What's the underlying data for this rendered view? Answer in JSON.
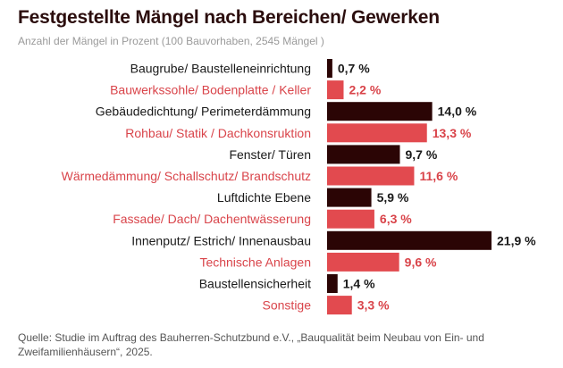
{
  "header": {
    "title": "Festgestellte Mängel nach Bereichen/ Gewerken",
    "subtitle": "Anzahl der Mängel in Prozent (100 Bauvorhaben, 2545 Mängel )"
  },
  "footer": {
    "source": "Quelle: Studie im Auftrag des Bauherren-Schutzbund e.V., „Bauqualität beim Neubau von Ein- und Zweifamilienhäusern“, 2025."
  },
  "colors": {
    "dark": "#2b0505",
    "accent": "#e24a4f",
    "dark_label": "#1a1a1a",
    "accent_label": "#d9444a"
  },
  "chart_data": {
    "type": "bar",
    "orientation": "horizontal",
    "categories": [
      "Baugrube/ Baustelleneinrichtung",
      "Bauwerkssohle/ Bodenplatte / Keller",
      "Gebäudedichtung/ Perimeterdämmung",
      "Rohbau/ Statik / Dachkonsruktion",
      "Fenster/ Türen",
      "Wärmedämmung/ Schallschutz/ Brandschutz",
      "Luftdichte Ebene",
      "Fassade/ Dach/ Dachentwässerung",
      "Innenputz/ Estrich/ Innenausbau",
      "Technische Anlagen",
      "Baustellensicherheit",
      "Sonstige"
    ],
    "values": [
      0.7,
      2.2,
      14.0,
      13.3,
      9.7,
      11.6,
      5.9,
      6.3,
      21.9,
      9.6,
      1.4,
      3.3
    ],
    "value_labels": [
      "0,7 %",
      "2,2 %",
      "14,0 %",
      "13,3 %",
      "9,7 %",
      "11,6 %",
      "5,9 %",
      "6,3 %",
      "21,9 %",
      "9,6 %",
      "1,4 %",
      "3,3 %"
    ],
    "bar_colors": [
      "dark",
      "accent",
      "dark",
      "accent",
      "dark",
      "accent",
      "dark",
      "accent",
      "dark",
      "accent",
      "dark",
      "accent"
    ],
    "unit": "%",
    "xlim": [
      0,
      21.9
    ],
    "grid": false,
    "legend": false
  }
}
